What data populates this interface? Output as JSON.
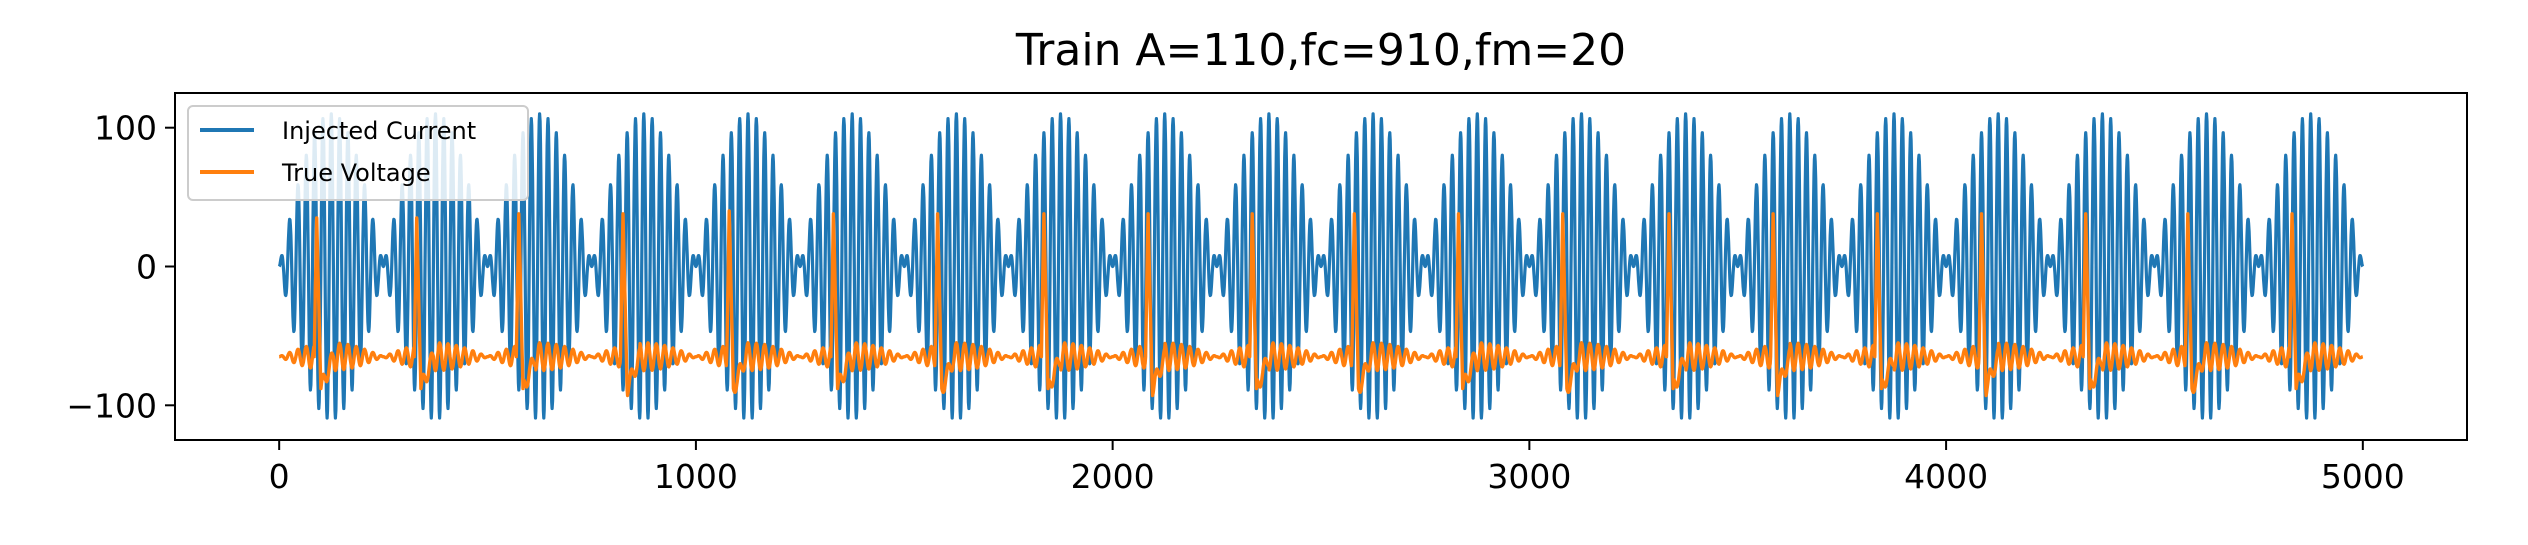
{
  "chart_data": {
    "type": "line",
    "title": "Train A=110,fc=910,fm=20",
    "xlabel": "",
    "ylabel": "",
    "xlim": [
      -250,
      5250
    ],
    "ylim": [
      -125,
      125
    ],
    "x_ticks": [
      0,
      1000,
      2000,
      3000,
      4000,
      5000
    ],
    "x_tick_labels": [
      "0",
      "1000",
      "2000",
      "3000",
      "4000",
      "5000"
    ],
    "y_ticks": [
      100,
      0,
      -100
    ],
    "y_tick_labels": [
      "100",
      "0",
      "−100"
    ],
    "grid": false,
    "legend_position": "upper-left",
    "series": [
      {
        "name": "Injected Current",
        "color": "#1f77b4",
        "kind": "amplitude-modulated sinusoid",
        "x_range": [
          0,
          5000
        ],
        "amplitude": 110,
        "envelope_period": 250,
        "carrier_period": 20
      },
      {
        "name": "True Voltage",
        "color": "#ff7f0e",
        "kind": "spike train",
        "x_range": [
          0,
          5000
        ],
        "rest": -65,
        "oscillation_amplitude": 10,
        "spike_times": [
          90,
          330,
          575,
          825,
          1080,
          1330,
          1580,
          1835,
          2085,
          2335,
          2580,
          2830,
          3080,
          3335,
          3585,
          3835,
          4085,
          4335,
          4580,
          4830
        ],
        "spike_peaks": [
          35,
          35,
          38,
          38,
          40,
          38,
          38,
          38,
          38,
          38,
          38,
          38,
          38,
          38,
          38,
          38,
          38,
          38,
          38,
          38
        ],
        "spike_trough": -88
      }
    ]
  }
}
